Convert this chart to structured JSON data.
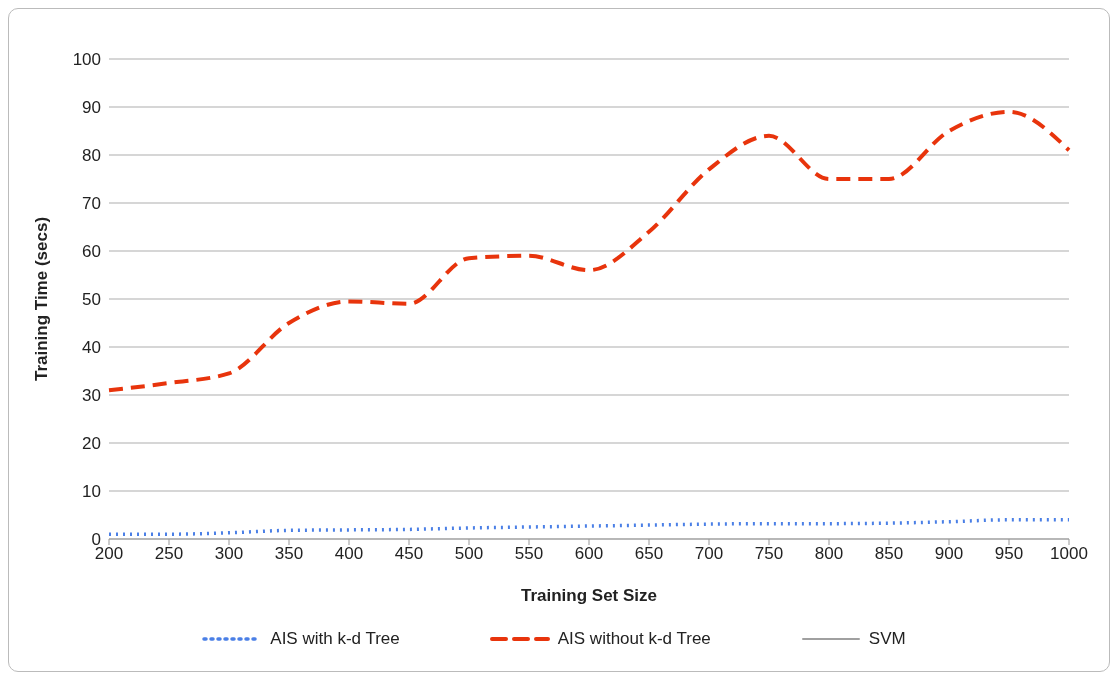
{
  "chart_data": {
    "type": "line",
    "xlabel": "Training Set Size",
    "ylabel": "Training Time (secs)",
    "categories": [
      "200",
      "250",
      "300",
      "350",
      "400",
      "450",
      "500",
      "550",
      "600",
      "650",
      "700",
      "750",
      "800",
      "850",
      "900",
      "950",
      "1000"
    ],
    "series": [
      {
        "name": "AIS with k-d Tree",
        "color": "#4a7fe6",
        "line_style": "dotted",
        "values": [
          1,
          1,
          1.3,
          1.8,
          1.9,
          2,
          2.3,
          2.5,
          2.7,
          2.9,
          3.1,
          3.2,
          3.2,
          3.3,
          3.6,
          4,
          4
        ]
      },
      {
        "name": "AIS without k-d Tree",
        "color": "#e8340c",
        "line_style": "dashed",
        "values": [
          31,
          32.5,
          34.5,
          45,
          49.5,
          49,
          58.5,
          59,
          56,
          64,
          77,
          84,
          75,
          75,
          85,
          89,
          81
        ]
      },
      {
        "name": "SVM",
        "color": "#a0a0a0",
        "line_style": "solid",
        "values": [
          null,
          null,
          null,
          null,
          null,
          null,
          null,
          null,
          null,
          null,
          null,
          null,
          null,
          null,
          null,
          null,
          null
        ]
      }
    ],
    "ylim": [
      0,
      100
    ],
    "yticks": [
      0,
      10,
      20,
      30,
      40,
      50,
      60,
      70,
      80,
      90,
      100
    ],
    "grid": "y",
    "legend": "bottom",
    "marker": "none"
  }
}
